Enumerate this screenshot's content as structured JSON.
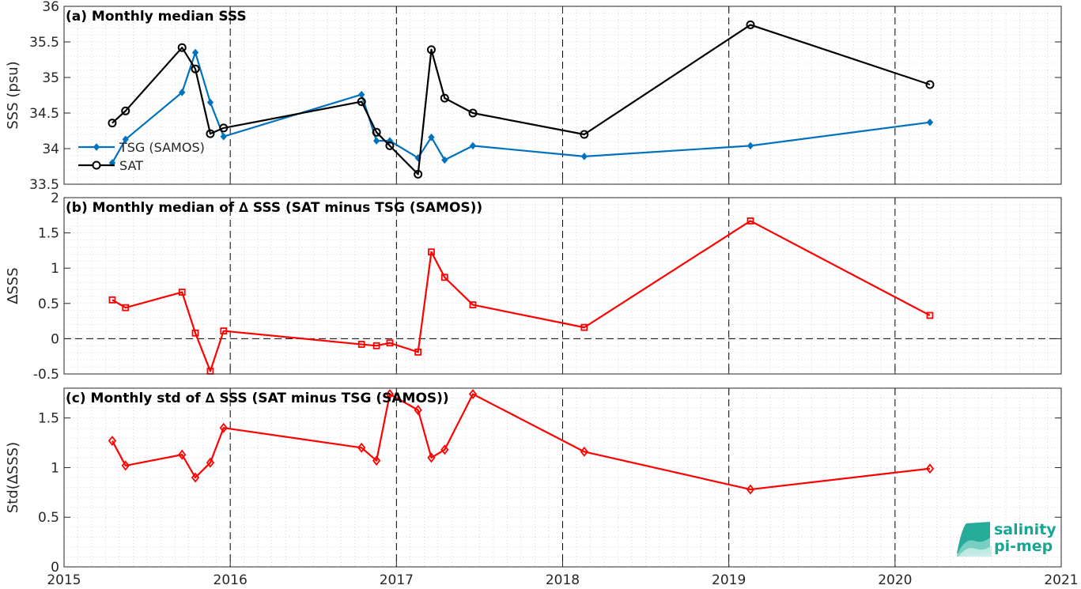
{
  "colors": {
    "tsg": "#0072bd",
    "sat": "#000000",
    "delta": "#ff0000",
    "logo": "#1aa593"
  },
  "logo": {
    "line1": "salinity",
    "line2": "pi-mep"
  },
  "chart_data": [
    {
      "type": "line",
      "title": "(a) Monthly median SSS",
      "ylabel": "SSS (psu)",
      "xlim": [
        2015,
        2021
      ],
      "ylim": [
        33.5,
        36
      ],
      "yticks": [
        33.5,
        34,
        34.5,
        35,
        35.5,
        36
      ],
      "ytick_labels": [
        "33.5",
        "34",
        "34.5",
        "35",
        "35.5",
        "36"
      ],
      "vlines": [
        2016,
        2017,
        2018,
        2019,
        2020
      ],
      "grid": true,
      "legend": "left",
      "series": [
        {
          "name": "TSG (SAMOS)",
          "color_key": "tsg",
          "marker": "diamond-filled",
          "x": [
            2015.29,
            2015.37,
            2015.71,
            2015.79,
            2015.88,
            2015.96,
            2016.79,
            2016.88,
            2016.96,
            2017.13,
            2017.21,
            2017.29,
            2017.46,
            2018.13,
            2019.13,
            2020.21
          ],
          "values": [
            33.8,
            34.13,
            34.79,
            35.35,
            34.65,
            34.17,
            34.76,
            34.11,
            34.11,
            33.87,
            34.16,
            33.84,
            34.04,
            33.89,
            34.04,
            34.37
          ]
        },
        {
          "name": "SAT",
          "color_key": "sat",
          "marker": "circle-open",
          "x": [
            2015.29,
            2015.37,
            2015.71,
            2015.79,
            2015.88,
            2015.96,
            2016.79,
            2016.88,
            2016.96,
            2017.13,
            2017.21,
            2017.29,
            2017.46,
            2018.13,
            2019.13,
            2020.21
          ],
          "values": [
            34.36,
            34.53,
            35.42,
            35.12,
            34.21,
            34.29,
            34.66,
            34.23,
            34.04,
            33.64,
            35.39,
            34.71,
            34.5,
            34.2,
            35.74,
            34.9
          ]
        }
      ]
    },
    {
      "type": "line",
      "title": "(b) Monthly median of ∆ SSS (SAT minus TSG (SAMOS))",
      "ylabel": "∆SSS",
      "xlim": [
        2015,
        2021
      ],
      "ylim": [
        -0.5,
        2
      ],
      "yticks": [
        -0.5,
        0,
        0.5,
        1,
        1.5,
        2
      ],
      "ytick_labels": [
        "-0.5",
        "0",
        "0.5",
        "1",
        "1.5",
        "2"
      ],
      "vlines": [
        2016,
        2017,
        2018,
        2019,
        2020
      ],
      "hline": 0,
      "grid": true,
      "series": [
        {
          "color_key": "delta",
          "marker": "square-open",
          "x": [
            2015.29,
            2015.37,
            2015.71,
            2015.79,
            2015.88,
            2015.96,
            2016.79,
            2016.88,
            2016.96,
            2017.13,
            2017.21,
            2017.29,
            2017.46,
            2018.13,
            2019.13,
            2020.21
          ],
          "values": [
            0.55,
            0.44,
            0.66,
            0.08,
            -0.46,
            0.11,
            -0.08,
            -0.1,
            -0.06,
            -0.19,
            1.23,
            0.87,
            0.48,
            0.16,
            1.67,
            0.33
          ]
        }
      ]
    },
    {
      "type": "line",
      "title": "(c) Monthly std of ∆ SSS (SAT minus TSG (SAMOS))",
      "ylabel": "Std(∆SSS)",
      "xlabel": "",
      "xlim": [
        2015,
        2021
      ],
      "ylim": [
        0,
        1.8
      ],
      "yticks": [
        0,
        0.5,
        1,
        1.5
      ],
      "ytick_labels": [
        "0",
        "0.5",
        "1",
        "1.5"
      ],
      "xticks": [
        2015,
        2016,
        2017,
        2018,
        2019,
        2020,
        2021
      ],
      "xtick_labels": [
        "2015",
        "2016",
        "2017",
        "2018",
        "2019",
        "2020",
        "2021"
      ],
      "vlines": [
        2016,
        2017,
        2018,
        2019,
        2020
      ],
      "grid": true,
      "series": [
        {
          "color_key": "delta",
          "marker": "diamond-open",
          "x": [
            2015.29,
            2015.37,
            2015.71,
            2015.79,
            2015.88,
            2015.96,
            2016.79,
            2016.88,
            2016.96,
            2017.13,
            2017.21,
            2017.29,
            2017.46,
            2018.13,
            2019.13,
            2020.21
          ],
          "values": [
            1.27,
            1.02,
            1.13,
            0.9,
            1.05,
            1.4,
            1.2,
            1.07,
            1.74,
            1.58,
            1.1,
            1.18,
            1.74,
            1.16,
            0.78,
            0.99
          ]
        }
      ]
    }
  ]
}
